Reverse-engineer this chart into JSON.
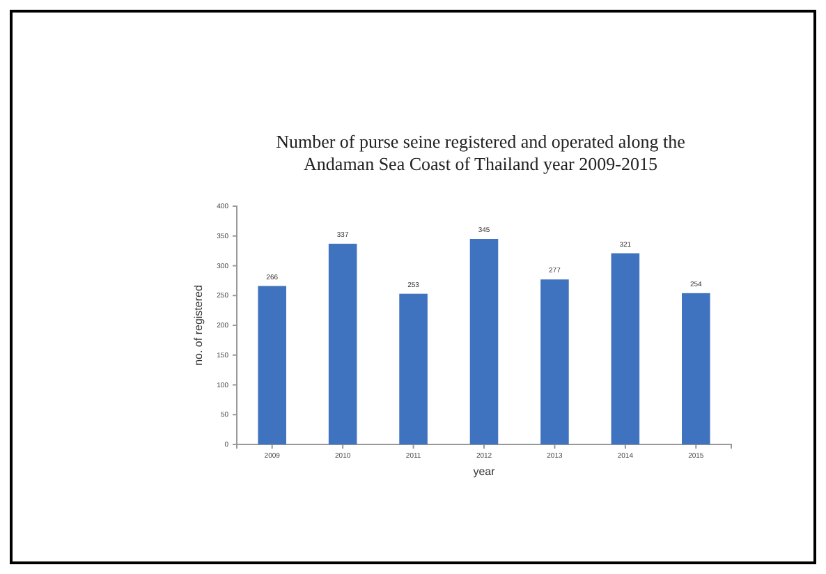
{
  "chart_data": {
    "type": "bar",
    "title": "Number of purse seine registered and operated along the Andaman Sea Coast of Thailand year 2009-2015",
    "categories": [
      "2009",
      "2010",
      "2011",
      "2012",
      "2013",
      "2014",
      "2015"
    ],
    "values": [
      266,
      337,
      253,
      345,
      277,
      321,
      254
    ],
    "color": "#3f73bf",
    "data_labels": true,
    "xlabel": "year",
    "ylabel": "no. of registered",
    "ylim": [
      0,
      400
    ],
    "yticks": [
      0,
      50,
      100,
      150,
      200,
      250,
      300,
      350,
      400
    ],
    "grid": false
  }
}
